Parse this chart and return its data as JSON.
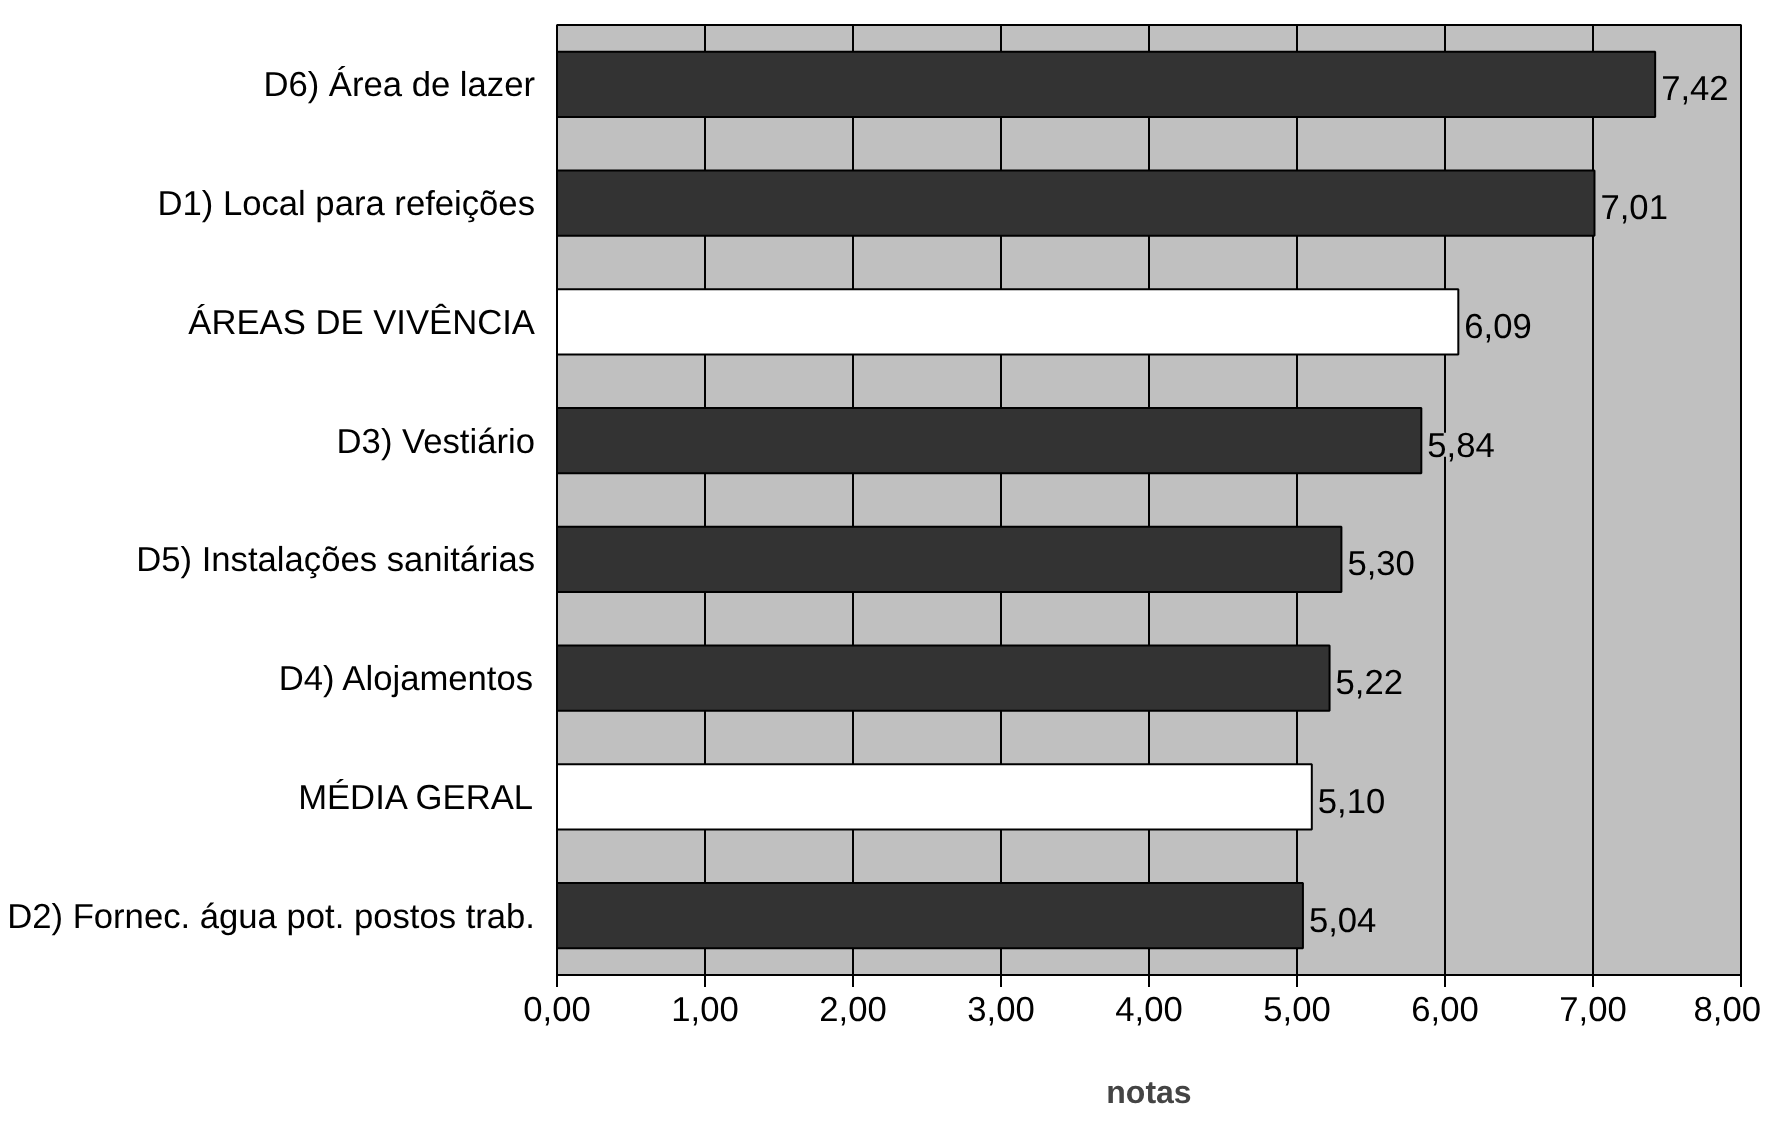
{
  "chart_data": {
    "type": "bar",
    "orientation": "horizontal",
    "xlabel": "notas",
    "categories": [
      "D6) Área de lazer",
      "D1) Local para refeições",
      "ÁREAS DE VIVÊNCIA",
      "D3) Vestiário",
      "D5) Instalações sanitárias",
      "D4) Alojamentos",
      "MÉDIA GERAL",
      "D2) Fornec. água pot. postos trab."
    ],
    "values": [
      7.42,
      7.01,
      6.09,
      5.84,
      5.3,
      5.22,
      5.1,
      5.04
    ],
    "colors": [
      "#333333",
      "#333333",
      "#ffffff",
      "#333333",
      "#333333",
      "#333333",
      "#ffffff",
      "#333333"
    ],
    "value_labels": [
      "7,42",
      "7,01",
      "6,09",
      "5,84",
      "5,30",
      "5,22",
      "5,10",
      "5,04"
    ],
    "xlim": [
      0,
      8
    ],
    "xticks": [
      {
        "value": 0,
        "label": "0,00"
      },
      {
        "value": 1,
        "label": "1,00"
      },
      {
        "value": 2,
        "label": "2,00"
      },
      {
        "value": 3,
        "label": "3,00"
      },
      {
        "value": 4,
        "label": "4,00"
      },
      {
        "value": 5,
        "label": "5,00"
      },
      {
        "value": 6,
        "label": "6,00"
      },
      {
        "value": 7,
        "label": "7,00"
      },
      {
        "value": 8,
        "label": "8,00"
      }
    ],
    "grid": "x"
  }
}
